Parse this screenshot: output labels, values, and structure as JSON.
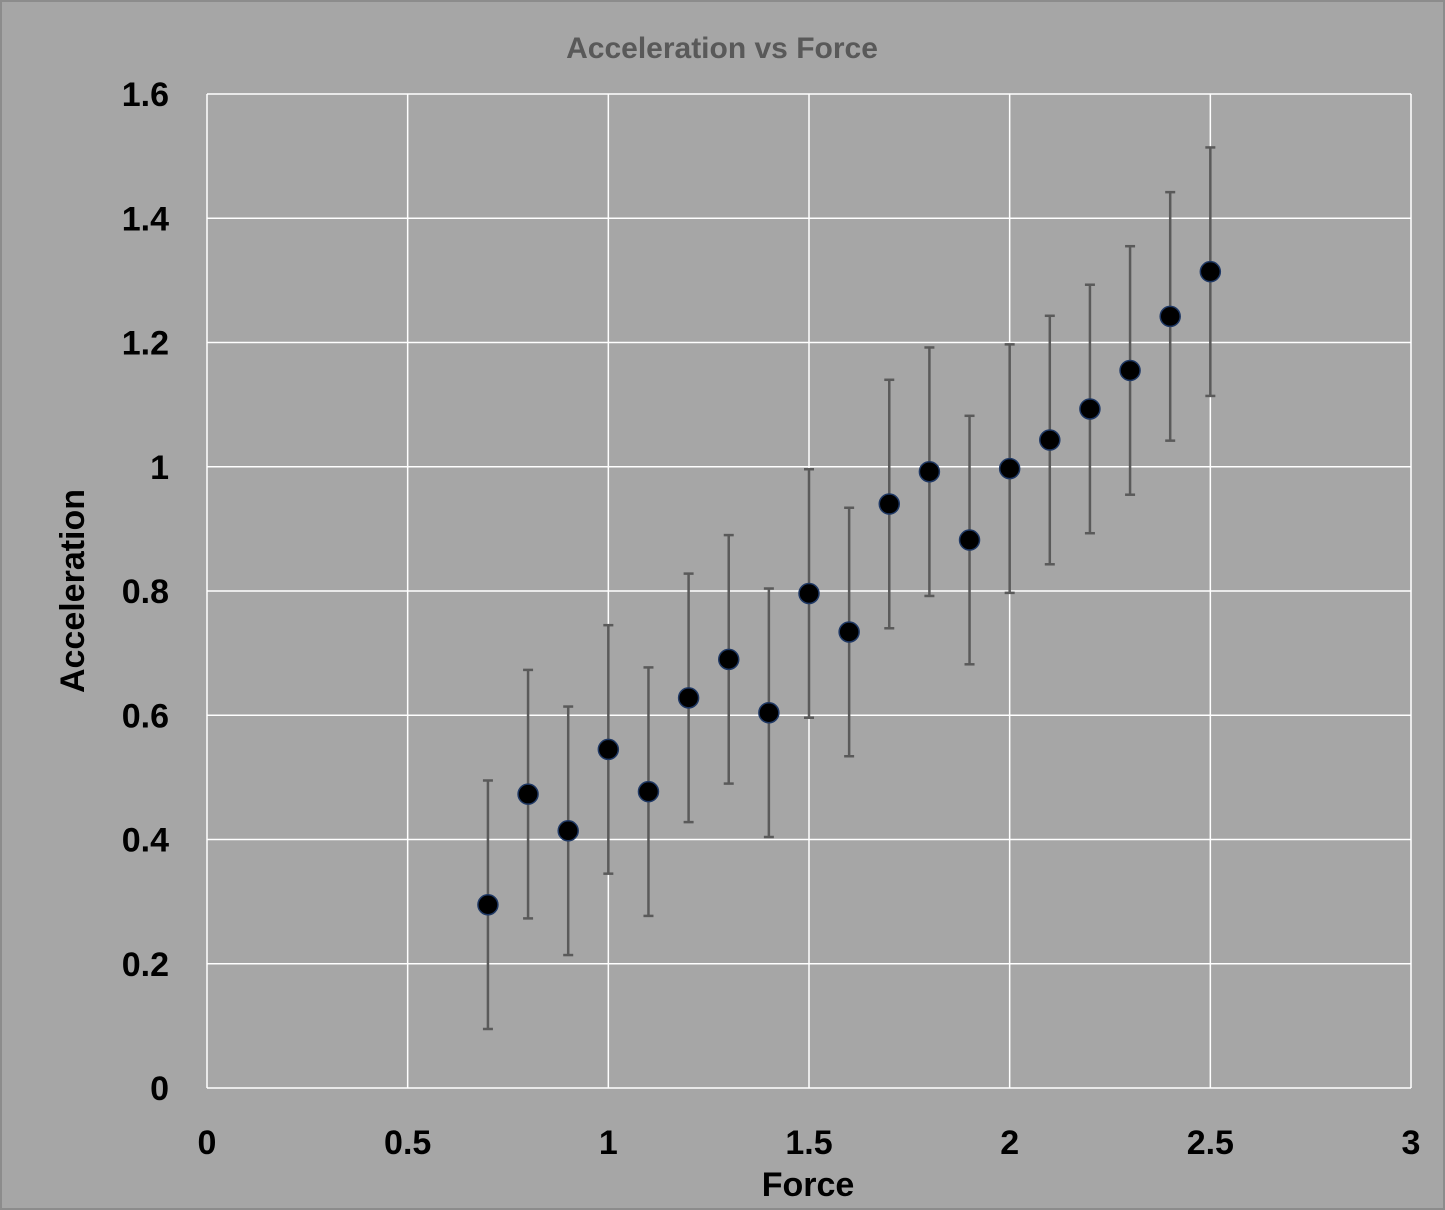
{
  "chart_data": {
    "type": "scatter",
    "title": "Acceleration vs Force",
    "xlabel": "Force",
    "ylabel": "Acceleration",
    "xlim": [
      0,
      3
    ],
    "ylim": [
      0,
      1.6
    ],
    "x_ticks": [
      "0",
      "0.5",
      "1",
      "1.5",
      "2",
      "2.5",
      "3"
    ],
    "y_ticks": [
      "0",
      "0.2",
      "0.4",
      "0.6",
      "0.8",
      "1",
      "1.2",
      "1.4",
      "1.6"
    ],
    "grid": true,
    "legend": "none",
    "error_bars": "±0.2",
    "marker_color": "#000000",
    "error_bar_color": "#5a5a5a",
    "background_color": "#a6a6a6",
    "series": [
      {
        "x": [
          0.7,
          0.8,
          0.9,
          1.0,
          1.1,
          1.2,
          1.3,
          1.4,
          1.5,
          1.6,
          1.7,
          1.8,
          1.9,
          2.0,
          2.1,
          2.2,
          2.3,
          2.4,
          2.5
        ],
        "y": [
          0.295,
          0.473,
          0.414,
          0.545,
          0.477,
          0.628,
          0.69,
          0.604,
          0.796,
          0.734,
          0.94,
          0.992,
          0.882,
          0.997,
          1.043,
          1.093,
          1.155,
          1.242,
          1.314
        ],
        "error": [
          0.2,
          0.2,
          0.2,
          0.2,
          0.2,
          0.2,
          0.2,
          0.2,
          0.2,
          0.2,
          0.2,
          0.2,
          0.2,
          0.2,
          0.2,
          0.2,
          0.2,
          0.2,
          0.2
        ]
      }
    ]
  }
}
